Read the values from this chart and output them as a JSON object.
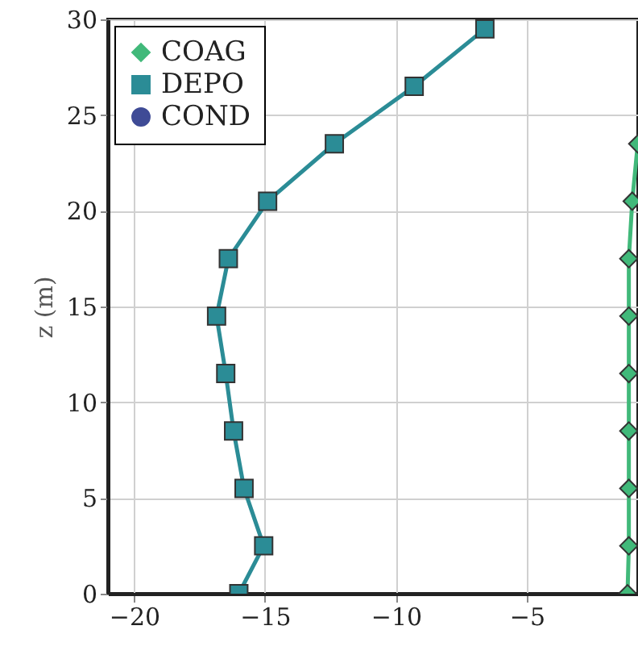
{
  "chart_data": {
    "type": "line",
    "ylabel": "z (m)",
    "xlim": [
      -21,
      -0.75
    ],
    "ylim": [
      0,
      30
    ],
    "xticks": [
      -20,
      -15,
      -10,
      -5
    ],
    "yticks": [
      0,
      5,
      10,
      15,
      20,
      25,
      30
    ],
    "grid": true,
    "legend": "top left",
    "line_style": "solid",
    "series": [
      {
        "name": "COAG",
        "color": "#41b97a",
        "marker": "diamond",
        "x": [
          -0.76,
          -0.97,
          -1.1,
          -1.1,
          -1.1,
          -1.1,
          -1.1,
          -1.1,
          -1.15
        ],
        "values": [
          23.5,
          20.5,
          17.5,
          14.5,
          11.5,
          8.5,
          5.5,
          2.5,
          0
        ]
      },
      {
        "name": "DEPO",
        "color": "#2b8c96",
        "marker": "square",
        "x": [
          -6.6,
          -9.3,
          -12.35,
          -14.9,
          -16.4,
          -16.85,
          -16.5,
          -16.2,
          -15.8,
          -15.05,
          -16.0
        ],
        "values": [
          29.5,
          26.5,
          23.5,
          20.5,
          17.5,
          14.5,
          11.5,
          8.5,
          5.5,
          2.5,
          0
        ]
      },
      {
        "name": "COND",
        "color": "#3f4b96",
        "marker": "circle"
      }
    ]
  }
}
